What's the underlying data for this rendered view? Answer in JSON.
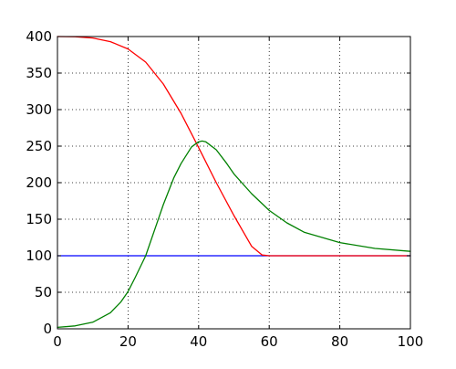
{
  "chart_data": {
    "type": "line",
    "title": "",
    "xlabel": "",
    "ylabel": "",
    "xlim": [
      0,
      100
    ],
    "ylim": [
      0,
      400
    ],
    "xticks": [
      0,
      20,
      40,
      60,
      80,
      100
    ],
    "yticks": [
      0,
      50,
      100,
      150,
      200,
      250,
      300,
      350,
      400
    ],
    "xtick_labels": [
      "0",
      "20",
      "40",
      "60",
      "80",
      "100"
    ],
    "ytick_labels": [
      "0",
      "50",
      "100",
      "150",
      "200",
      "250",
      "300",
      "350",
      "400"
    ],
    "grid": true,
    "grid_style": "dotted",
    "legend": "none",
    "series": [
      {
        "color": "#0000ff",
        "x": [
          0,
          100
        ],
        "y": [
          100,
          100
        ]
      },
      {
        "color": "#ff0000",
        "x": [
          0,
          5,
          10,
          15,
          20,
          25,
          30,
          35,
          40,
          45,
          50,
          55,
          58,
          60,
          70,
          80,
          90,
          100
        ],
        "y": [
          400,
          399.7,
          398,
          393,
          383,
          365,
          335,
          295,
          248,
          200,
          155,
          113,
          101,
          100,
          100,
          100,
          100,
          100
        ]
      },
      {
        "color": "#008000",
        "x": [
          0,
          5,
          10,
          15,
          18,
          20,
          22,
          25,
          28,
          30,
          33,
          35,
          38,
          40,
          41,
          42,
          45,
          48,
          50,
          55,
          60,
          65,
          70,
          80,
          90,
          100
        ],
        "y": [
          2,
          4,
          9,
          22,
          37,
          51,
          70,
          100,
          142,
          170,
          207,
          226,
          249,
          256,
          257,
          256,
          245,
          226,
          212,
          185,
          162,
          145,
          132,
          118,
          110,
          106
        ]
      }
    ]
  }
}
